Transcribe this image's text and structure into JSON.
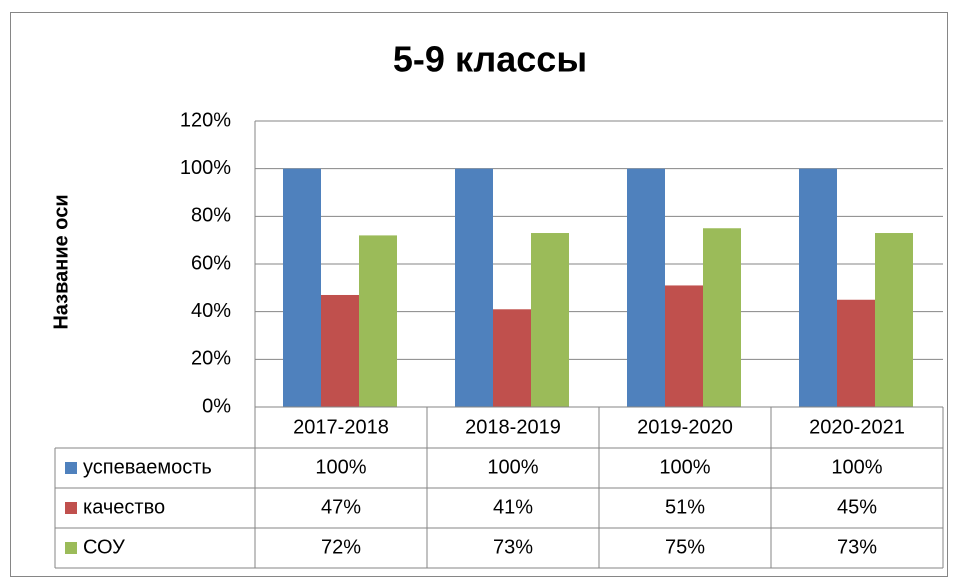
{
  "chart_data": {
    "type": "bar",
    "title": "5-9 классы",
    "y_label": "Название оси",
    "categories": [
      "2017-2018",
      "2018-2019",
      "2019-2020",
      "2020-2021"
    ],
    "series": [
      {
        "name": "успеваемость",
        "color": "#4f81bd",
        "values": [
          100,
          100,
          100,
          100
        ],
        "value_labels": [
          "100%",
          "100%",
          "100%",
          "100%"
        ]
      },
      {
        "name": "качество",
        "color": "#c0504d",
        "values": [
          47,
          41,
          51,
          45
        ],
        "value_labels": [
          "47%",
          "41%",
          "51%",
          "45%"
        ]
      },
      {
        "name": "СОУ",
        "color": "#9bbb59",
        "values": [
          72,
          73,
          75,
          73
        ],
        "value_labels": [
          "72%",
          "73%",
          "75%",
          "73%"
        ]
      }
    ],
    "ylim": [
      0,
      120
    ],
    "yticks": [
      {
        "value": 0,
        "label": "0%"
      },
      {
        "value": 20,
        "label": "20%"
      },
      {
        "value": 40,
        "label": "40%"
      },
      {
        "value": 60,
        "label": "60%"
      },
      {
        "value": 80,
        "label": "80%"
      },
      {
        "value": 100,
        "label": "100%"
      },
      {
        "value": 120,
        "label": "120%"
      }
    ],
    "grid": true,
    "data_table": true
  }
}
